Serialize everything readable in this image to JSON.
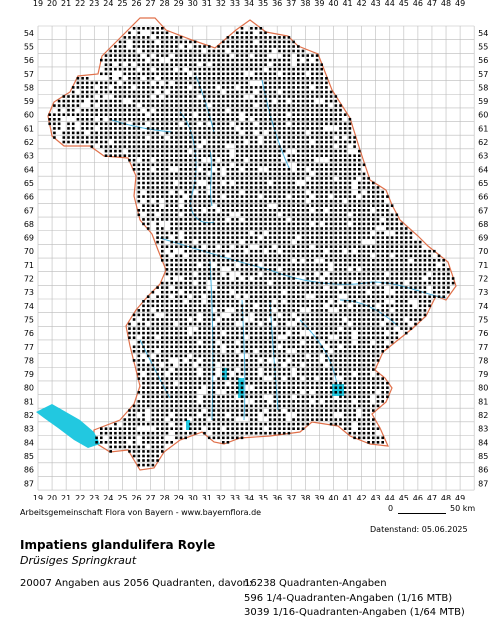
{
  "map": {
    "col_labels": [
      "19",
      "20",
      "21",
      "22",
      "23",
      "24",
      "25",
      "26",
      "27",
      "28",
      "29",
      "30",
      "31",
      "32",
      "33",
      "34",
      "35",
      "36",
      "37",
      "38",
      "39",
      "40",
      "41",
      "42",
      "43",
      "44",
      "45",
      "46",
      "47",
      "48",
      "49"
    ],
    "row_labels": [
      "54",
      "55",
      "56",
      "57",
      "58",
      "59",
      "60",
      "61",
      "62",
      "63",
      "64",
      "65",
      "66",
      "67",
      "68",
      "69",
      "70",
      "71",
      "72",
      "73",
      "74",
      "75",
      "76",
      "77",
      "78",
      "79",
      "80",
      "81",
      "82",
      "83",
      "84",
      "85",
      "86",
      "87"
    ],
    "colors": {
      "grid": "#bbbbbb",
      "border": "#e0704a",
      "rivers": "#4ab4e0",
      "lakes": "#22c8e0",
      "dots": "#000000"
    }
  },
  "footer": {
    "credit": "Arbeitsgemeinschaft Flora von Bayern - www.bayernflora.de",
    "scale_zero": "0",
    "scale_label": "50 km",
    "date": "Datenstand: 05.06.2025",
    "species": "Impatiens glandulifera Royle",
    "common_name": "Drüsiges Springkraut",
    "summary": "20007 Angaben aus 2056 Quadranten, davon:",
    "count_quadrant": "16238 Quadranten-Angaben",
    "count_quarter": "596 1/4-Quadranten-Angaben (1/16 MTB)",
    "count_sixteenth": "3039 1/16-Quadranten-Angaben (1/64 MTB)"
  }
}
